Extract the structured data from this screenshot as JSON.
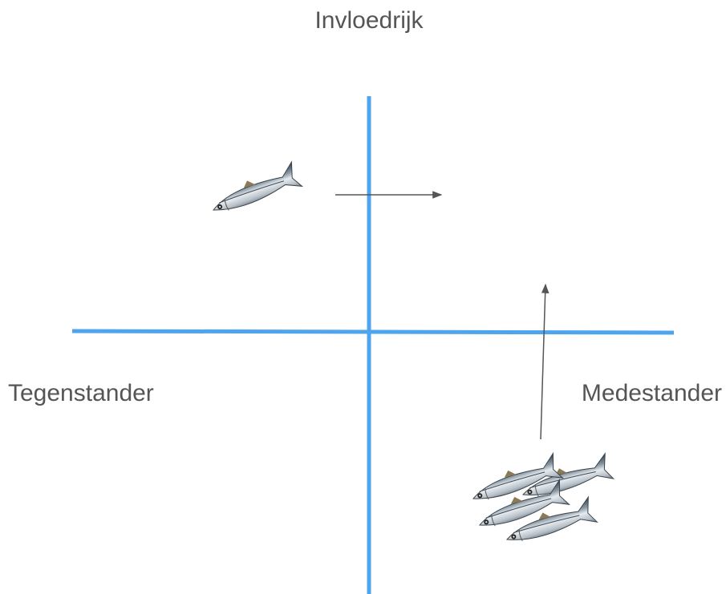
{
  "top_label": "Invloedrijk",
  "left_label": "Tegenstander",
  "right_label": "Medestander"
}
